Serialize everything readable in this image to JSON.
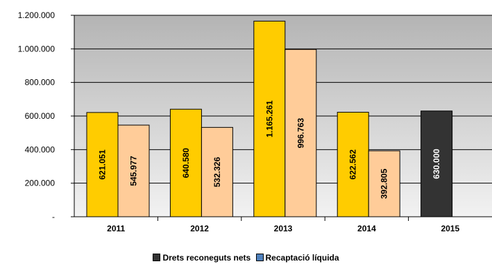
{
  "chart_data": {
    "type": "bar",
    "categories": [
      "2011",
      "2012",
      "2013",
      "2014",
      "2015"
    ],
    "series": [
      {
        "name": "",
        "values": [
          621051,
          640580,
          1165261,
          622562,
          null
        ],
        "labels": [
          "621.051",
          "640.580",
          "1.165.261",
          "622.562",
          ""
        ],
        "color": "#FFCC00"
      },
      {
        "name": "Recaptació líquida",
        "values": [
          545977,
          532326,
          996763,
          392805,
          null
        ],
        "labels": [
          "545.977",
          "532.326",
          "996.763",
          "392.805",
          ""
        ],
        "color": "#FFCC99"
      },
      {
        "name": "Drets reconeguts nets",
        "values": [
          null,
          null,
          null,
          null,
          630000
        ],
        "labels": [
          "",
          "",
          "",
          "",
          "630.000"
        ],
        "color": "#333333"
      }
    ],
    "y_ticks": [
      "-",
      "200.000",
      "400.000",
      "600.000",
      "800.000",
      "1.000.000",
      "1.200.000"
    ],
    "ylim": [
      0,
      1200000
    ],
    "grid": true,
    "plot_background": "gradient gray",
    "legend_position": "bottom"
  }
}
